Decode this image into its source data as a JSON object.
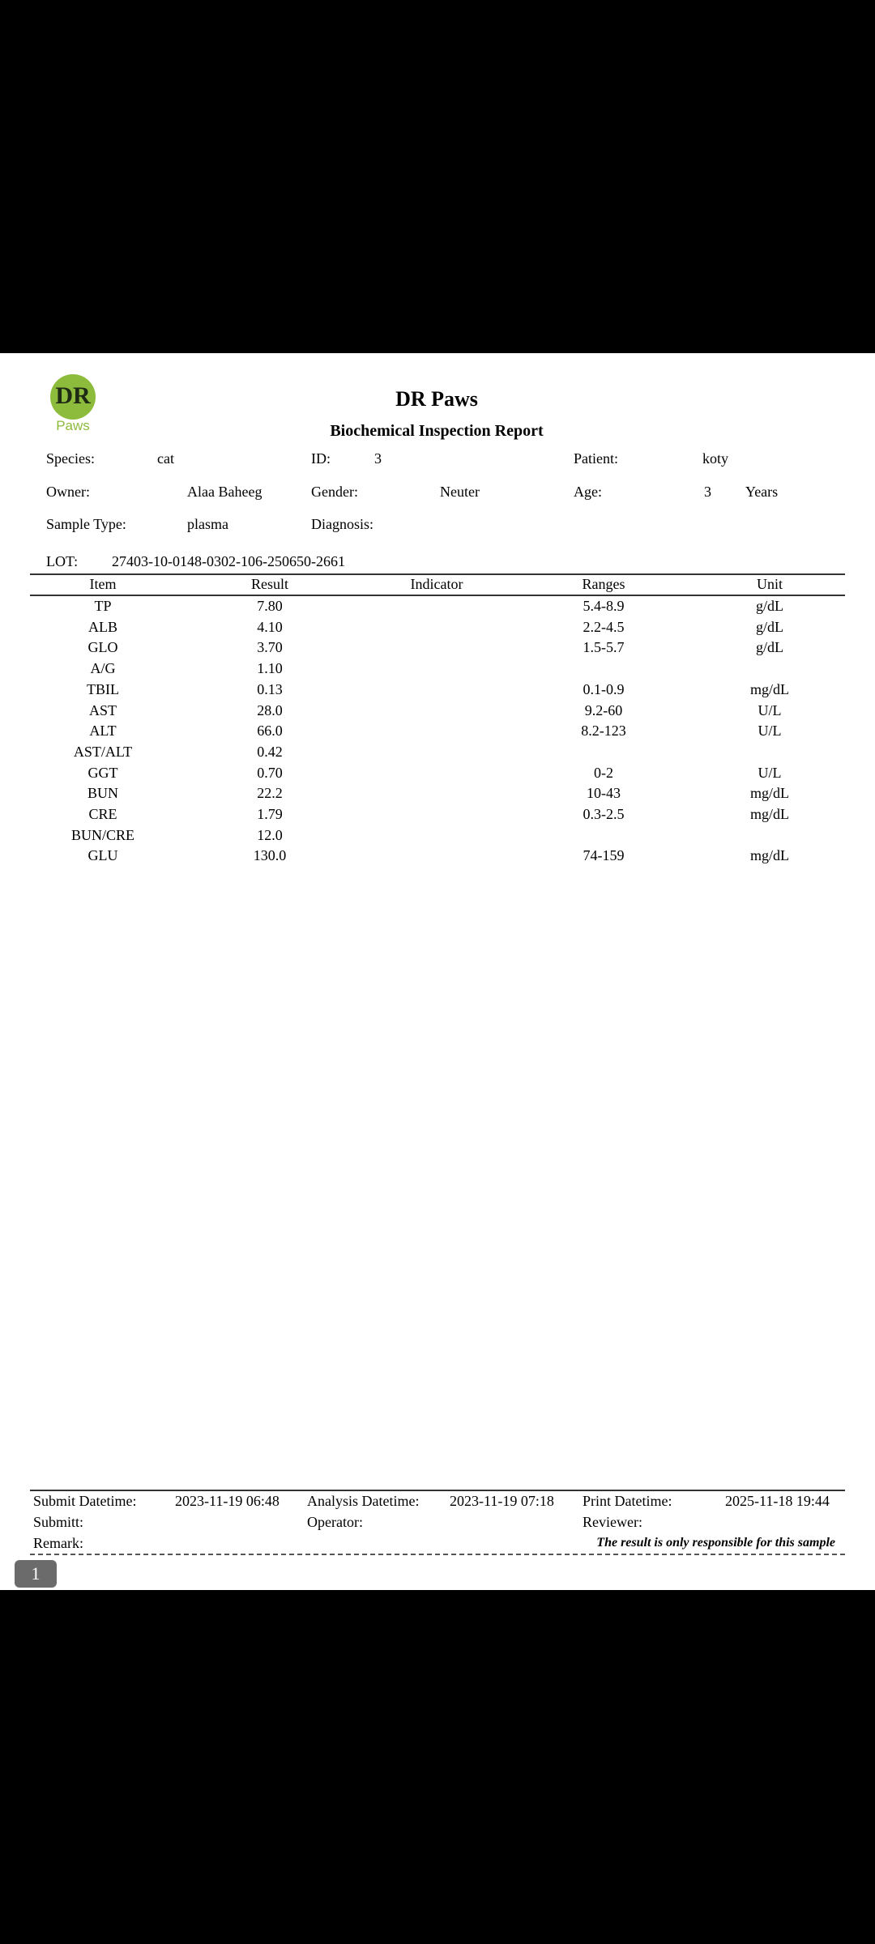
{
  "logo": {
    "text": "DR",
    "subtext": "Paws",
    "color": "#8dbb3c"
  },
  "header": {
    "title": "DR Paws",
    "subtitle": "Biochemical Inspection Report"
  },
  "info": {
    "species_label": "Species:",
    "species": "cat",
    "id_label": "ID:",
    "id": "3",
    "patient_label": "Patient:",
    "patient": "koty",
    "owner_label": "Owner:",
    "owner": "Alaa Baheeg",
    "gender_label": "Gender:",
    "gender": "Neuter",
    "age_label": "Age:",
    "age": "3",
    "age_unit": "Years",
    "sample_label": "Sample Type:",
    "sample": "plasma",
    "diagnosis_label": "Diagnosis:",
    "lot_label": "LOT:",
    "lot": "27403-10-0148-0302-106-250650-2661"
  },
  "table": {
    "columns": [
      "Item",
      "Result",
      "Indicator",
      "Ranges",
      "Unit"
    ],
    "rows": [
      [
        "TP",
        "7.80",
        "",
        "5.4-8.9",
        "g/dL"
      ],
      [
        "ALB",
        "4.10",
        "",
        "2.2-4.5",
        "g/dL"
      ],
      [
        "GLO",
        "3.70",
        "",
        "1.5-5.7",
        "g/dL"
      ],
      [
        "A/G",
        "1.10",
        "",
        "",
        ""
      ],
      [
        "TBIL",
        "0.13",
        "",
        "0.1-0.9",
        "mg/dL"
      ],
      [
        "AST",
        "28.0",
        "",
        "9.2-60",
        "U/L"
      ],
      [
        "ALT",
        "66.0",
        "",
        "8.2-123",
        "U/L"
      ],
      [
        "AST/ALT",
        "0.42",
        "",
        "",
        ""
      ],
      [
        "GGT",
        "0.70",
        "",
        "0-2",
        "U/L"
      ],
      [
        "BUN",
        "22.2",
        "",
        "10-43",
        "mg/dL"
      ],
      [
        "CRE",
        "1.79",
        "",
        "0.3-2.5",
        "mg/dL"
      ],
      [
        "BUN/CRE",
        "12.0",
        "",
        "",
        ""
      ],
      [
        "GLU",
        "130.0",
        "",
        "74-159",
        "mg/dL"
      ]
    ]
  },
  "footer": {
    "submit_label": "Submit Datetime:",
    "submit": "2023-11-19 06:48",
    "analysis_label": "Analysis Datetime:",
    "analysis": "2023-11-19 07:18",
    "print_label": "Print Datetime:",
    "print": "2025-11-18 19:44",
    "submitter_label": "Submitt:",
    "operator_label": "Operator:",
    "reviewer_label": "Reviewer:",
    "remark_label": "Remark:",
    "note": "The result is only responsible for this sample"
  },
  "page_badge": "1"
}
